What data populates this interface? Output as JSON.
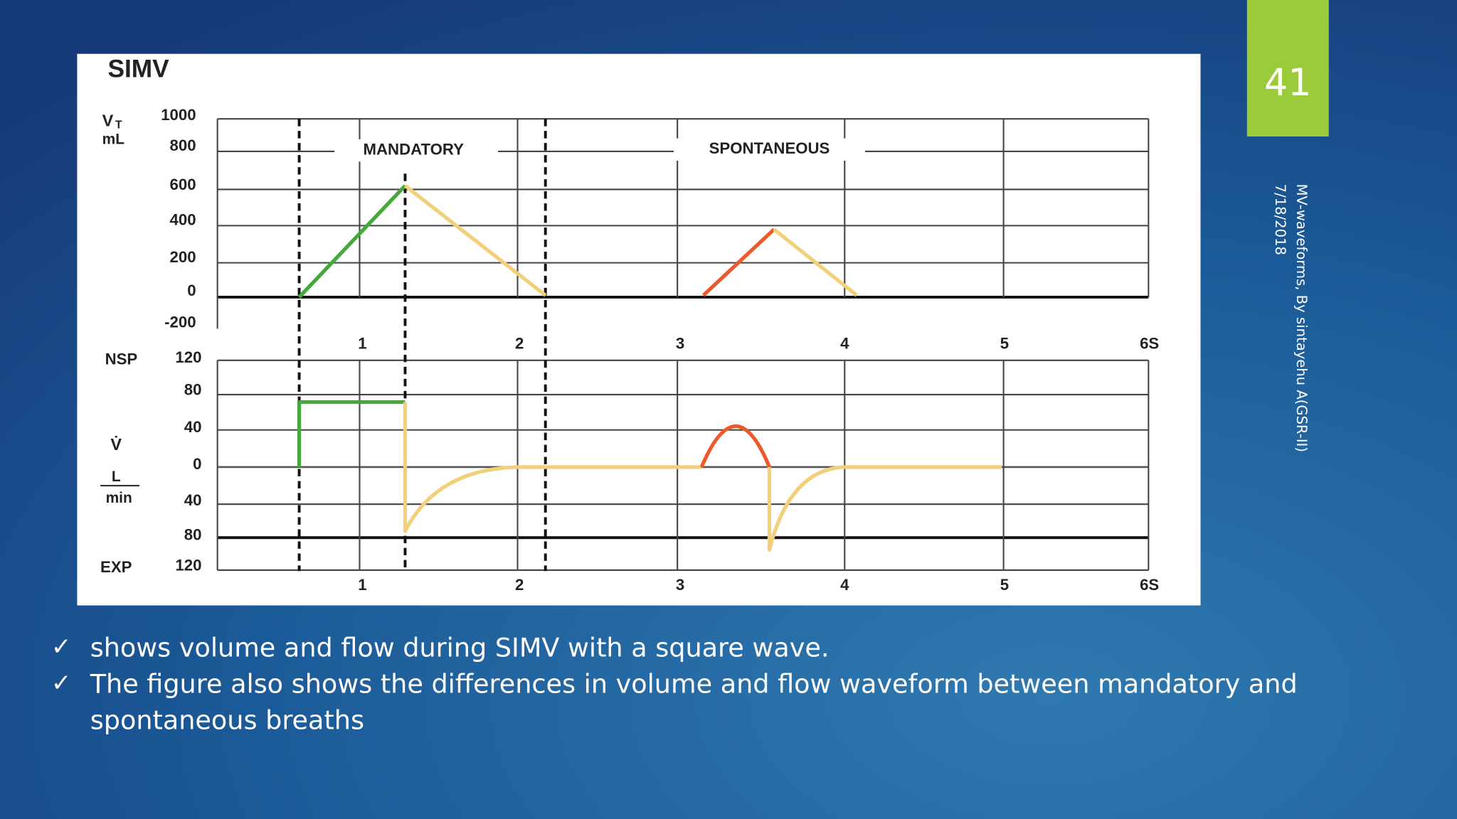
{
  "slide_number": "41",
  "side_text": [
    "MV-waveforms, By sintayehu A(GSR-II)",
    "7/18/2018"
  ],
  "figure": {
    "title": "SIMV",
    "volume_label": {
      "symbol": "V",
      "subscript": "T",
      "unit": "mL"
    },
    "flow_label": {
      "symbol": "V̇",
      "unit_top": "L",
      "unit_bottom": "min",
      "insp": "NSP",
      "exp": "EXP"
    },
    "phase_labels": [
      "MANDATORY",
      "SPONTANEOUS"
    ],
    "top_yticks": [
      1000,
      800,
      600,
      400,
      200,
      0,
      -200
    ],
    "bottom_yticks": [
      120,
      80,
      40,
      0,
      40,
      80,
      120
    ],
    "xticks": [
      1,
      2,
      3,
      4,
      5,
      "6S"
    ]
  },
  "bullet_marker": "✓",
  "bullets": [
    "shows volume and flow during SIMV with a square wave.",
    "The figure also shows the differences in volume and flow waveform between mandatory and",
    "spontaneous breaths"
  ]
}
